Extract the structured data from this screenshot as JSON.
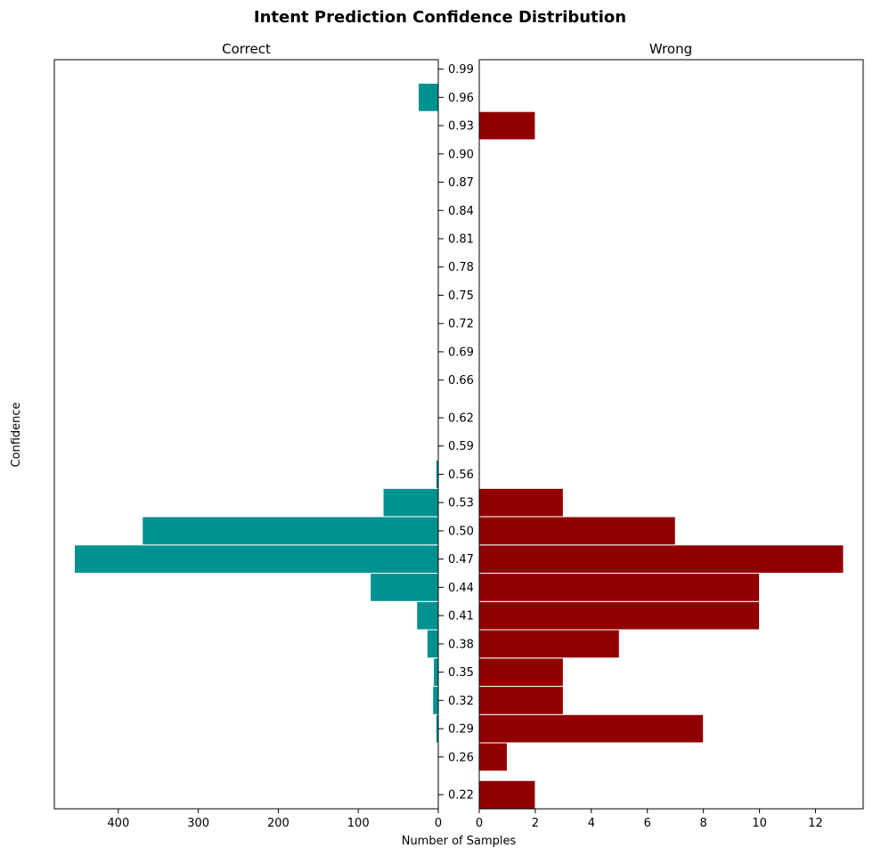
{
  "chart_data": {
    "type": "bar",
    "orientation": "horizontal",
    "title": "Intent Prediction Confidence Distribution",
    "ylabel": "Confidence",
    "xlabel": "Number of Samples",
    "y_ticks": [
      "0.22",
      "0.26",
      "0.29",
      "0.32",
      "0.35",
      "0.38",
      "0.41",
      "0.44",
      "0.47",
      "0.50",
      "0.53",
      "0.56",
      "0.59",
      "0.62",
      "0.66",
      "0.69",
      "0.72",
      "0.75",
      "0.78",
      "0.81",
      "0.84",
      "0.87",
      "0.90",
      "0.93",
      "0.96",
      "0.99"
    ],
    "ylim": [
      0.205,
      1.0
    ],
    "bin_width": 0.03,
    "panels": [
      {
        "name": "Correct",
        "color": "#009191",
        "xlim": [
          480,
          0
        ],
        "x_inverted": true,
        "x_ticks": [
          400,
          300,
          200,
          100,
          0
        ],
        "bars": [
          {
            "y": 0.29,
            "value": 3
          },
          {
            "y": 0.32,
            "value": 7
          },
          {
            "y": 0.35,
            "value": 6
          },
          {
            "y": 0.38,
            "value": 14
          },
          {
            "y": 0.41,
            "value": 27
          },
          {
            "y": 0.44,
            "value": 85
          },
          {
            "y": 0.47,
            "value": 455
          },
          {
            "y": 0.5,
            "value": 370
          },
          {
            "y": 0.53,
            "value": 69
          },
          {
            "y": 0.56,
            "value": 3
          },
          {
            "y": 0.96,
            "value": 25
          }
        ]
      },
      {
        "name": "Wrong",
        "color": "#910000",
        "xlim": [
          0,
          13.7
        ],
        "x_inverted": false,
        "x_ticks": [
          0,
          2,
          4,
          6,
          8,
          10,
          12
        ],
        "bars": [
          {
            "y": 0.22,
            "value": 2
          },
          {
            "y": 0.26,
            "value": 1
          },
          {
            "y": 0.29,
            "value": 8
          },
          {
            "y": 0.32,
            "value": 3
          },
          {
            "y": 0.35,
            "value": 3
          },
          {
            "y": 0.38,
            "value": 5
          },
          {
            "y": 0.41,
            "value": 10
          },
          {
            "y": 0.44,
            "value": 10
          },
          {
            "y": 0.47,
            "value": 13
          },
          {
            "y": 0.5,
            "value": 7
          },
          {
            "y": 0.53,
            "value": 3
          },
          {
            "y": 0.93,
            "value": 2
          }
        ]
      }
    ]
  }
}
